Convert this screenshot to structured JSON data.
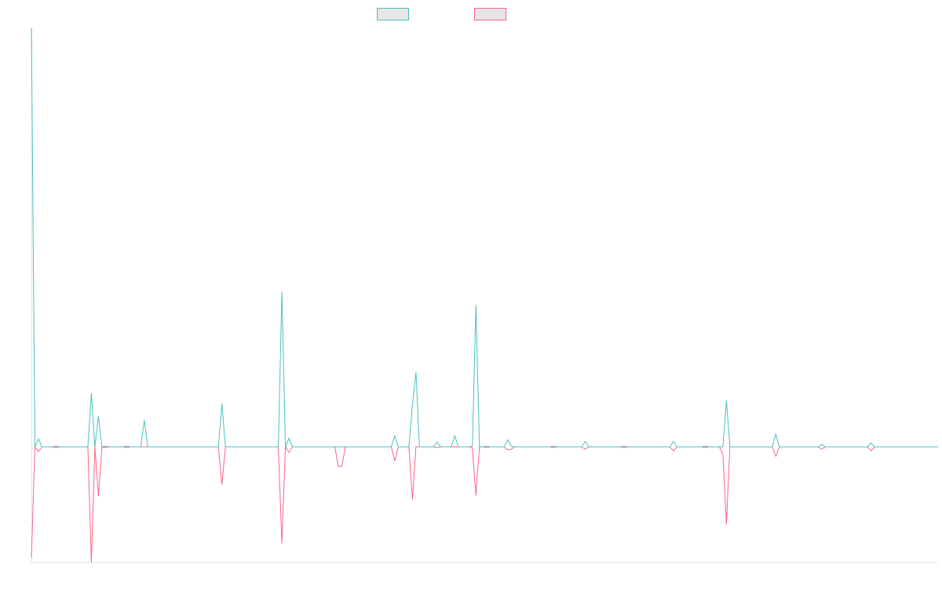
{
  "chart_data": {
    "type": "line",
    "x": [
      0,
      1,
      2,
      3,
      6,
      7,
      8,
      16,
      17,
      18,
      19,
      20,
      21,
      22,
      26,
      27,
      28,
      31,
      32,
      33,
      53,
      54,
      55,
      70,
      71,
      72,
      73,
      74,
      86,
      87,
      88,
      89,
      102,
      103,
      104,
      107,
      108,
      109,
      110,
      114,
      115,
      116,
      119,
      120,
      121,
      124,
      125,
      126,
      127,
      128,
      129,
      130,
      134,
      135,
      136,
      137,
      147,
      148,
      149,
      156,
      157,
      158,
      167,
      168,
      169,
      181,
      182,
      183,
      190,
      191,
      192,
      195,
      196,
      197,
      198,
      210,
      211,
      212,
      223,
      224,
      225,
      237,
      238,
      239,
      257
    ],
    "xlim": [
      0,
      257
    ],
    "ylim": [
      -147,
      533
    ],
    "series": [
      {
        "color": "#4bc0c0",
        "values": [
          533,
          0,
          10,
          0,
          0,
          1,
          0,
          0,
          68,
          0,
          39,
          0,
          1,
          0,
          0,
          1,
          0,
          0,
          34,
          0,
          0,
          55,
          0,
          0,
          197,
          0,
          11,
          0,
          0,
          0,
          0,
          0,
          0,
          14,
          0,
          0,
          53,
          95,
          0,
          0,
          6,
          0,
          0,
          14,
          0,
          0,
          1,
          181,
          0,
          0,
          1,
          0,
          0,
          9,
          1,
          0,
          0,
          1,
          0,
          0,
          7,
          0,
          0,
          1,
          0,
          0,
          7,
          0,
          0,
          1,
          0,
          0,
          0,
          59,
          0,
          0,
          16,
          0,
          0,
          3,
          0,
          0,
          5,
          0,
          0
        ]
      },
      {
        "color": "#ff6384",
        "values": [
          -141,
          0,
          -6,
          0,
          0,
          -1,
          0,
          0,
          -147,
          0,
          -63,
          0,
          -1,
          0,
          0,
          -1,
          0,
          0,
          0,
          0,
          0,
          -48,
          0,
          0,
          -123,
          0,
          -7,
          0,
          0,
          -25,
          -25,
          0,
          0,
          -18,
          0,
          0,
          -67,
          0,
          0,
          0,
          -1,
          0,
          0,
          0,
          0,
          0,
          -1,
          -62,
          0,
          0,
          -1,
          0,
          0,
          -4,
          -3,
          0,
          0,
          -1,
          0,
          0,
          -3,
          0,
          0,
          -1,
          0,
          0,
          -5,
          0,
          0,
          -1,
          0,
          0,
          -9,
          -99,
          0,
          0,
          -12,
          0,
          0,
          -3,
          0,
          0,
          -5,
          0,
          0
        ]
      }
    ]
  }
}
